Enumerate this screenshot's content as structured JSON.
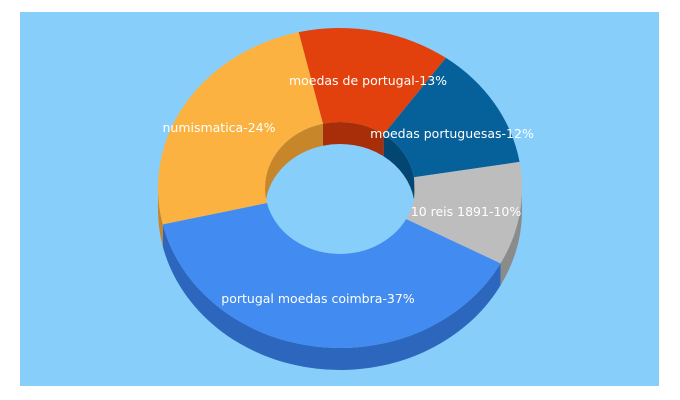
{
  "colors": {
    "background": "#87cefa"
  },
  "chart_data": {
    "type": "pie",
    "variant": "3d-donut",
    "title": "",
    "categories": [
      "moedas de portugal",
      "moedas portuguesas",
      "10 reis 1891",
      "portugal moedas coimbra",
      "numismatica"
    ],
    "values": [
      13,
      12,
      10,
      37,
      24
    ],
    "unit": "%",
    "labels": [
      "moedas de portugal-13%",
      "moedas portuguesas-12%",
      "10 reis 1891-10%",
      "portugal moedas coimbra-37%",
      "numismatica-24%"
    ],
    "colors": [
      "#e2410d",
      "#06619a",
      "#bdbdbd",
      "#428bf0",
      "#fbb240"
    ],
    "side_colors": [
      "#a82e09",
      "#044672",
      "#8b8b8b",
      "#2c66bd",
      "#c8862a"
    ]
  }
}
